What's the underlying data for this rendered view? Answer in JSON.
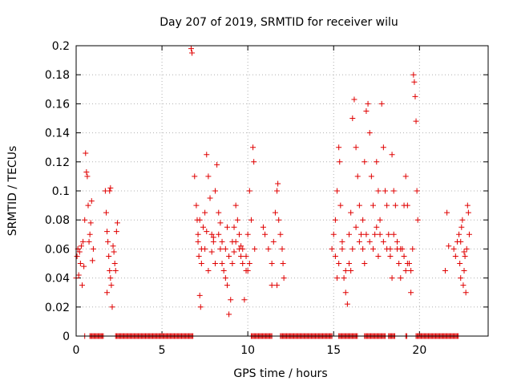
{
  "chart_data": {
    "type": "scatter",
    "title": "Day 207 of 2019, SRMTID for receiver wilu",
    "xlabel": "GPS time / hours",
    "ylabel": "SRMTID / TECUs",
    "xlim": [
      0,
      24
    ],
    "ylim": [
      0,
      0.2
    ],
    "grid": true,
    "marker": "+",
    "series_color": "#e00000",
    "x_ticks": [
      0,
      5,
      10,
      15,
      20
    ],
    "x_tick_labels": [
      "0",
      "5",
      "10",
      "15",
      "20"
    ],
    "y_ticks": [
      0,
      0.02,
      0.04,
      0.06,
      0.08,
      0.1,
      0.12,
      0.14,
      0.16,
      0.18,
      0.2
    ],
    "y_tick_labels": [
      "0",
      "0.02",
      "0.04",
      "0.06",
      "0.08",
      "0.1",
      "0.12",
      "0.14",
      "0.16",
      "0.18",
      "0.2"
    ],
    "series": [
      {
        "name": "SRMTID",
        "points": [
          [
            0.0,
            0.04
          ],
          [
            0.05,
            0.055
          ],
          [
            0.1,
            0.06
          ],
          [
            0.15,
            0.042
          ],
          [
            0.2,
            0.058
          ],
          [
            0.25,
            0.05
          ],
          [
            0.3,
            0.062
          ],
          [
            0.35,
            0.035
          ],
          [
            0.4,
            0.065
          ],
          [
            0.45,
            0.048
          ],
          [
            0.5,
            0.08
          ],
          [
            0.55,
            0.126
          ],
          [
            0.6,
            0.113
          ],
          [
            0.65,
            0.11
          ],
          [
            0.7,
            0.09
          ],
          [
            0.75,
            0.065
          ],
          [
            0.8,
            0.07
          ],
          [
            0.85,
            0.078
          ],
          [
            0.9,
            0.093
          ],
          [
            0.95,
            0.052
          ],
          [
            1.0,
            0.06
          ],
          [
            1.7,
            0.1
          ],
          [
            1.75,
            0.085
          ],
          [
            1.8,
            0.072
          ],
          [
            1.85,
            0.065
          ],
          [
            1.9,
            0.055
          ],
          [
            1.95,
            0.045
          ],
          [
            2.0,
            0.04
          ],
          [
            2.05,
            0.035
          ],
          [
            2.1,
            0.02
          ],
          [
            2.15,
            0.062
          ],
          [
            2.2,
            0.058
          ],
          [
            2.25,
            0.05
          ],
          [
            2.3,
            0.045
          ],
          [
            2.35,
            0.072
          ],
          [
            2.4,
            0.078
          ],
          [
            1.8,
            0.03
          ],
          [
            1.95,
            0.1
          ],
          [
            2.0,
            0.102
          ],
          [
            6.7,
            0.198
          ],
          [
            6.75,
            0.195
          ],
          [
            6.9,
            0.11
          ],
          [
            7.0,
            0.09
          ],
          [
            7.05,
            0.08
          ],
          [
            7.1,
            0.07
          ],
          [
            7.15,
            0.055
          ],
          [
            7.2,
            0.028
          ],
          [
            7.25,
            0.02
          ],
          [
            7.3,
            0.06
          ],
          [
            7.4,
            0.075
          ],
          [
            7.5,
            0.085
          ],
          [
            7.6,
            0.125
          ],
          [
            7.7,
            0.11
          ],
          [
            7.8,
            0.095
          ],
          [
            7.9,
            0.07
          ],
          [
            8.0,
            0.065
          ],
          [
            8.1,
            0.1
          ],
          [
            8.2,
            0.118
          ],
          [
            8.3,
            0.085
          ],
          [
            8.4,
            0.06
          ],
          [
            8.5,
            0.05
          ],
          [
            8.6,
            0.045
          ],
          [
            8.7,
            0.04
          ],
          [
            8.8,
            0.035
          ],
          [
            8.9,
            0.015
          ],
          [
            9.0,
            0.025
          ],
          [
            9.1,
            0.065
          ],
          [
            9.2,
            0.075
          ],
          [
            9.3,
            0.09
          ],
          [
            9.4,
            0.08
          ],
          [
            9.5,
            0.06
          ],
          [
            9.6,
            0.055
          ],
          [
            9.7,
            0.05
          ],
          [
            9.8,
            0.025
          ],
          [
            9.9,
            0.045
          ],
          [
            10.0,
            0.07
          ],
          [
            10.1,
            0.1
          ],
          [
            10.2,
            0.08
          ],
          [
            10.3,
            0.13
          ],
          [
            10.35,
            0.12
          ],
          [
            10.4,
            0.06
          ],
          [
            7.1,
            0.065
          ],
          [
            7.3,
            0.05
          ],
          [
            7.5,
            0.06
          ],
          [
            7.7,
            0.045
          ],
          [
            7.9,
            0.058
          ],
          [
            8.1,
            0.05
          ],
          [
            8.3,
            0.07
          ],
          [
            8.5,
            0.065
          ],
          [
            8.7,
            0.06
          ],
          [
            8.9,
            0.055
          ],
          [
            9.1,
            0.05
          ],
          [
            9.3,
            0.065
          ],
          [
            9.5,
            0.07
          ],
          [
            9.7,
            0.06
          ],
          [
            9.9,
            0.055
          ],
          [
            10.1,
            0.05
          ],
          [
            7.2,
            0.08
          ],
          [
            7.6,
            0.072
          ],
          [
            8.0,
            0.068
          ],
          [
            8.4,
            0.078
          ],
          [
            8.8,
            0.075
          ],
          [
            9.2,
            0.058
          ],
          [
            9.6,
            0.062
          ],
          [
            10.0,
            0.045
          ],
          [
            10.9,
            0.075
          ],
          [
            11.0,
            0.07
          ],
          [
            11.2,
            0.06
          ],
          [
            11.4,
            0.05
          ],
          [
            11.5,
            0.065
          ],
          [
            11.6,
            0.085
          ],
          [
            11.7,
            0.1
          ],
          [
            11.75,
            0.105
          ],
          [
            11.8,
            0.08
          ],
          [
            11.9,
            0.07
          ],
          [
            12.0,
            0.06
          ],
          [
            12.05,
            0.05
          ],
          [
            12.1,
            0.04
          ],
          [
            11.4,
            0.035
          ],
          [
            11.7,
            0.035
          ],
          [
            14.9,
            0.06
          ],
          [
            15.0,
            0.07
          ],
          [
            15.1,
            0.08
          ],
          [
            15.2,
            0.1
          ],
          [
            15.3,
            0.13
          ],
          [
            15.35,
            0.12
          ],
          [
            15.4,
            0.09
          ],
          [
            15.5,
            0.065
          ],
          [
            15.6,
            0.04
          ],
          [
            15.7,
            0.03
          ],
          [
            15.8,
            0.022
          ],
          [
            15.9,
            0.05
          ],
          [
            16.0,
            0.085
          ],
          [
            16.1,
            0.15
          ],
          [
            16.2,
            0.163
          ],
          [
            16.3,
            0.13
          ],
          [
            16.4,
            0.11
          ],
          [
            16.5,
            0.09
          ],
          [
            16.6,
            0.07
          ],
          [
            16.7,
            0.06
          ],
          [
            16.8,
            0.12
          ],
          [
            16.9,
            0.155
          ],
          [
            17.0,
            0.16
          ],
          [
            17.1,
            0.14
          ],
          [
            17.2,
            0.11
          ],
          [
            17.3,
            0.09
          ],
          [
            17.4,
            0.07
          ],
          [
            17.5,
            0.12
          ],
          [
            17.6,
            0.1
          ],
          [
            17.7,
            0.08
          ],
          [
            17.8,
            0.16
          ],
          [
            17.9,
            0.13
          ],
          [
            18.0,
            0.1
          ],
          [
            18.1,
            0.09
          ],
          [
            18.2,
            0.07
          ],
          [
            18.3,
            0.06
          ],
          [
            18.4,
            0.125
          ],
          [
            18.5,
            0.1
          ],
          [
            18.6,
            0.09
          ],
          [
            18.7,
            0.06
          ],
          [
            18.8,
            0.05
          ],
          [
            18.9,
            0.04
          ],
          [
            19.0,
            0.06
          ],
          [
            19.1,
            0.09
          ],
          [
            19.2,
            0.11
          ],
          [
            19.3,
            0.09
          ],
          [
            19.4,
            0.05
          ],
          [
            19.5,
            0.03
          ],
          [
            19.6,
            0.06
          ],
          [
            19.65,
            0.18
          ],
          [
            19.7,
            0.175
          ],
          [
            19.75,
            0.165
          ],
          [
            19.8,
            0.148
          ],
          [
            19.85,
            0.1
          ],
          [
            19.9,
            0.08
          ],
          [
            15.1,
            0.055
          ],
          [
            15.3,
            0.05
          ],
          [
            15.5,
            0.06
          ],
          [
            15.7,
            0.045
          ],
          [
            15.9,
            0.07
          ],
          [
            16.1,
            0.06
          ],
          [
            16.3,
            0.075
          ],
          [
            16.5,
            0.065
          ],
          [
            16.7,
            0.08
          ],
          [
            16.9,
            0.07
          ],
          [
            17.1,
            0.065
          ],
          [
            17.3,
            0.06
          ],
          [
            17.5,
            0.075
          ],
          [
            17.7,
            0.07
          ],
          [
            17.9,
            0.065
          ],
          [
            18.1,
            0.06
          ],
          [
            18.3,
            0.055
          ],
          [
            18.5,
            0.07
          ],
          [
            18.7,
            0.065
          ],
          [
            18.9,
            0.06
          ],
          [
            19.1,
            0.055
          ],
          [
            19.3,
            0.05
          ],
          [
            19.5,
            0.045
          ],
          [
            15.2,
            0.04
          ],
          [
            16.0,
            0.045
          ],
          [
            16.8,
            0.05
          ],
          [
            17.6,
            0.055
          ],
          [
            18.4,
            0.04
          ],
          [
            19.2,
            0.045
          ],
          [
            21.6,
            0.085
          ],
          [
            21.7,
            0.062
          ],
          [
            21.5,
            0.045
          ],
          [
            22.0,
            0.06
          ],
          [
            22.1,
            0.055
          ],
          [
            22.2,
            0.065
          ],
          [
            22.3,
            0.07
          ],
          [
            22.35,
            0.05
          ],
          [
            22.4,
            0.04
          ],
          [
            22.45,
            0.075
          ],
          [
            22.5,
            0.08
          ],
          [
            22.55,
            0.035
          ],
          [
            22.6,
            0.045
          ],
          [
            22.65,
            0.055
          ],
          [
            22.7,
            0.03
          ],
          [
            22.75,
            0.06
          ],
          [
            22.8,
            0.09
          ],
          [
            22.85,
            0.085
          ],
          [
            22.9,
            0.07
          ],
          [
            22.4,
            0.065
          ],
          [
            22.6,
            0.058
          ]
        ]
      }
    ],
    "zero_segments": [
      [
        0.5,
        0.55
      ],
      [
        0.8,
        1.6
      ],
      [
        2.3,
        6.8
      ],
      [
        10.2,
        11.4
      ],
      [
        11.9,
        14.9
      ],
      [
        15.3,
        16.4
      ],
      [
        16.8,
        18.0
      ],
      [
        18.2,
        18.6
      ],
      [
        19.2,
        19.3
      ],
      [
        19.8,
        22.3
      ]
    ]
  }
}
